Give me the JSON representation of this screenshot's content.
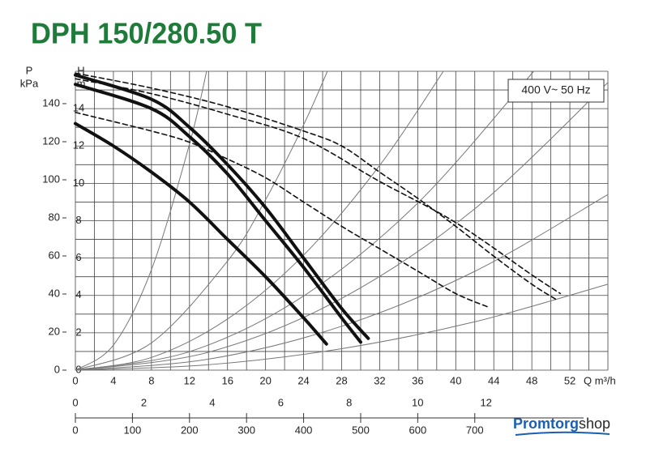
{
  "chart_data": {
    "type": "line",
    "title": "DPH 150/280.50 T",
    "annotation": "400 V~ 50 Hz",
    "xlim": [
      0,
      56
    ],
    "xticks": [
      0,
      4,
      8,
      12,
      16,
      20,
      24,
      28,
      32,
      36,
      40,
      44,
      48,
      52
    ],
    "x_label": "Q m³/h",
    "x2lim": [
      0,
      15.56
    ],
    "x2ticks": [
      0,
      2,
      4,
      6,
      8,
      10,
      12
    ],
    "x3lim": [
      0,
      933.3
    ],
    "x3ticks": [
      0,
      100,
      200,
      300,
      400,
      500,
      600,
      700
    ],
    "ylim": [
      0,
      16
    ],
    "yticks": [
      0,
      2,
      4,
      6,
      8,
      10,
      12,
      14
    ],
    "y_label": "H",
    "y_unit": "m",
    "y2lim": [
      0,
      157
    ],
    "y2ticks": [
      0,
      20,
      40,
      60,
      80,
      100,
      120,
      140
    ],
    "y2_label": "P",
    "y2_unit": "kPa",
    "grid": true,
    "grid_x": [
      0,
      2,
      4,
      6,
      8,
      10,
      12,
      14,
      16,
      18,
      20,
      22,
      24,
      26,
      28,
      30,
      32,
      34,
      36,
      38,
      40,
      42,
      44,
      46,
      48,
      50,
      52,
      54,
      56
    ],
    "grid_y": [
      0,
      1,
      2,
      3,
      4,
      5,
      6,
      7,
      8,
      9,
      10,
      11,
      12,
      13,
      14,
      15,
      16
    ],
    "series": [
      {
        "style": "thin",
        "color": "#777777",
        "x": [
          0,
          4,
          8,
          12,
          13.8
        ],
        "values": [
          0,
          1.34,
          5.38,
          12.1,
          16
        ]
      },
      {
        "style": "thin",
        "color": "#777777",
        "x": [
          0,
          8,
          16,
          20,
          24,
          26.5
        ],
        "values": [
          0,
          1.46,
          5.84,
          9.12,
          13.13,
          16
        ]
      },
      {
        "style": "thin",
        "color": "#777777",
        "x": [
          0,
          8,
          16,
          24,
          32,
          38.7
        ],
        "values": [
          0,
          0.68,
          2.74,
          6.16,
          10.96,
          16
        ]
      },
      {
        "style": "thin",
        "color": "#777777",
        "x": [
          0,
          12,
          24,
          36,
          48.2
        ],
        "values": [
          0,
          0.99,
          3.97,
          8.94,
          16
        ]
      },
      {
        "style": "thin",
        "color": "#777777",
        "x": [
          0,
          14,
          28,
          42,
          56
        ],
        "values": [
          0,
          0.96,
          3.84,
          8.64,
          15.4
        ]
      },
      {
        "style": "thin",
        "color": "#777777",
        "x": [
          0,
          14,
          28,
          42,
          56
        ],
        "values": [
          0,
          0.59,
          2.35,
          5.29,
          9.4
        ]
      },
      {
        "style": "thin",
        "color": "#777777",
        "x": [
          0,
          14,
          28,
          42,
          56
        ],
        "values": [
          0,
          0.29,
          1.15,
          2.59,
          4.6
        ]
      },
      {
        "style": "dashed",
        "color": "#111111",
        "x": [
          0,
          8,
          16,
          24,
          28,
          32,
          36,
          40,
          44,
          48,
          50.5
        ],
        "values": [
          15.9,
          15.1,
          14.1,
          12.8,
          12,
          10.6,
          9.2,
          7.7,
          6.1,
          4.6,
          3.8
        ]
      },
      {
        "style": "dashed",
        "color": "#111111",
        "x": [
          0,
          8,
          16,
          24,
          32,
          40,
          48,
          51
        ],
        "values": [
          15.6,
          14.8,
          13.7,
          12.4,
          10.1,
          7.9,
          5.1,
          4.1
        ]
      },
      {
        "style": "dashed",
        "color": "#111111",
        "x": [
          0,
          8,
          12,
          16,
          20,
          24,
          28,
          32,
          36,
          40,
          43.3
        ],
        "values": [
          13.8,
          12.8,
          12.2,
          11.3,
          10.3,
          9,
          7.7,
          6.5,
          5.3,
          4.1,
          3.4
        ]
      },
      {
        "style": "solid",
        "color": "#111111",
        "x": [
          0,
          8,
          12,
          16,
          20,
          24,
          28,
          30.8
        ],
        "values": [
          15.8,
          14.5,
          13,
          11,
          8.7,
          6,
          3.3,
          1.7
        ]
      },
      {
        "style": "solid",
        "color": "#111111",
        "x": [
          0,
          8,
          12,
          16,
          20,
          24,
          28,
          30
        ],
        "values": [
          15.3,
          14,
          12.5,
          10.5,
          8,
          5.5,
          2.8,
          1.5
        ]
      },
      {
        "style": "solid",
        "color": "#111111",
        "x": [
          0,
          4,
          8,
          12,
          16,
          20,
          24,
          26.4
        ],
        "values": [
          13.2,
          12,
          10.6,
          9,
          7,
          5,
          2.8,
          1.4
        ]
      }
    ]
  },
  "watermark": [
    "Promtorg",
    "shop"
  ]
}
